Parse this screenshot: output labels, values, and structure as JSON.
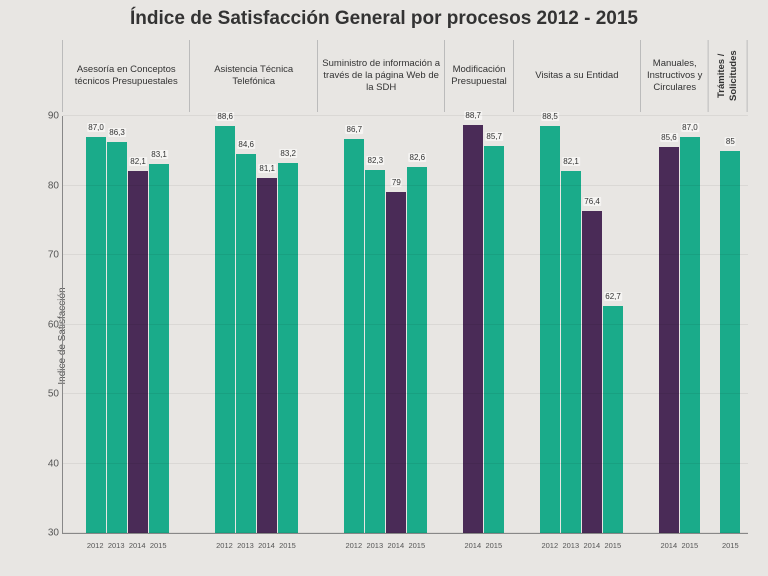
{
  "title": "Índice de Satisfacción General por  procesos 2012 - 2015",
  "y_axis_label": "Indice de Satisfacción",
  "ylim": [
    30,
    90
  ],
  "yticks": [
    30,
    40,
    50,
    60,
    70,
    80,
    90
  ],
  "colors": {
    "year2012": "#1aab8a",
    "year2013": "#1aab8a",
    "year2014": "#4a2b57",
    "year2015": "#1aab8a",
    "background": "#e8e6e3",
    "text": "#333333"
  },
  "bar_width": 0.85,
  "groups": [
    {
      "label": "Asesoría en Conceptos técnicos Presupuestales",
      "w": 4,
      "years": [
        "2012",
        "2013",
        "2014",
        "2015"
      ],
      "values": [
        87.0,
        86.3,
        82.1,
        83.1
      ],
      "value_labels": [
        "87,0",
        "86,3",
        "82,1",
        "83,1"
      ]
    },
    {
      "label": "Asistencia Técnica Telefónica",
      "w": 4,
      "years": [
        "2012",
        "2013",
        "2014",
        "2015"
      ],
      "values": [
        88.6,
        84.6,
        81.1,
        83.2
      ],
      "value_labels": [
        "88,6",
        "84,6",
        "81,1",
        "83,2"
      ]
    },
    {
      "label": "Suministro de información a través de la página Web de la SDH",
      "w": 4,
      "years": [
        "2012",
        "2013",
        "2014",
        "2015"
      ],
      "values": [
        86.7,
        82.3,
        79.0,
        82.6
      ],
      "value_labels": [
        "86,7",
        "82,3",
        "79",
        "82,6"
      ]
    },
    {
      "label": "Modificación Presupuestal",
      "w": 2,
      "years": [
        "2014",
        "2015"
      ],
      "values": [
        88.7,
        85.7
      ],
      "value_labels": [
        "88,7",
        "85,7"
      ]
    },
    {
      "label": "Visitas a su Entidad",
      "w": 4,
      "years": [
        "2012",
        "2013",
        "2014",
        "2015"
      ],
      "values": [
        88.5,
        82.1,
        76.4,
        62.7
      ],
      "value_labels": [
        "88,5",
        "82,1",
        "76,4",
        "62,7"
      ]
    },
    {
      "label": "Manuales, Instructivos y Circulares",
      "w": 2,
      "years": [
        "2014",
        "2015"
      ],
      "values": [
        85.6,
        87.0
      ],
      "value_labels": [
        "85,6",
        "87,0"
      ]
    },
    {
      "label": "Trámites / Solicitudes",
      "w": 1,
      "rotated": true,
      "years": [
        "2015"
      ],
      "values": [
        85.0
      ],
      "value_labels": [
        "85"
      ]
    }
  ]
}
